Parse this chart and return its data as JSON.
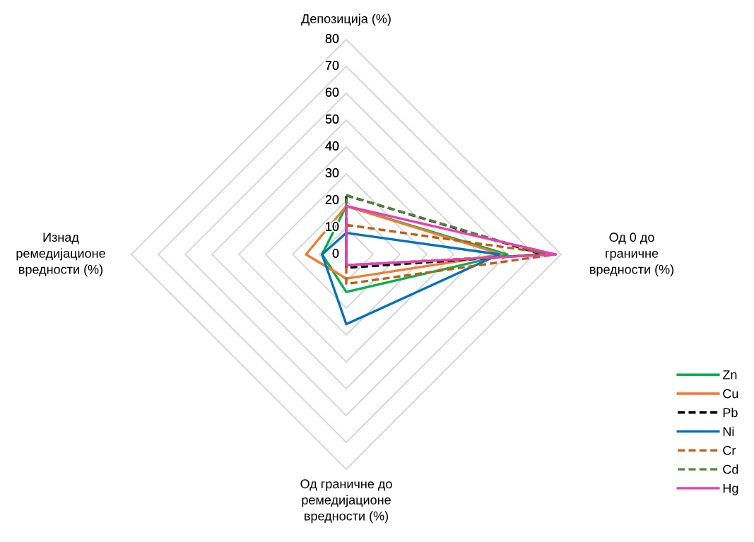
{
  "chart_data": {
    "type": "radar",
    "categories": [
      "Депозиција (%)",
      "Од 0 до\nграничне\nвредности (%)",
      "Од граничне до\nремедијационе\nвредности (%)",
      "Изнад\nремедијационе\nвредности (%)"
    ],
    "ylim": [
      0,
      80
    ],
    "yticks": [
      0,
      10,
      20,
      30,
      40,
      50,
      60,
      70,
      80
    ],
    "grid": true,
    "legend": "bottom right",
    "marker": "none",
    "series": [
      {
        "name": "Zn",
        "color": "#00b050",
        "line_style": "solid",
        "values": [
          18,
          60,
          14,
          9
        ]
      },
      {
        "name": "Cu",
        "color": "#ed7d31",
        "line_style": "solid",
        "values": [
          18,
          58,
          9,
          15
        ]
      },
      {
        "name": "Pb",
        "color": "#000000",
        "line_style": "dashed",
        "values": [
          22,
          73,
          5,
          0
        ]
      },
      {
        "name": "Ni",
        "color": "#0070c0",
        "line_style": "solid",
        "values": [
          8,
          57,
          26,
          9
        ]
      },
      {
        "name": "Cr",
        "color": "#c55a11",
        "line_style": "dashed",
        "values": [
          11,
          78,
          11,
          0
        ]
      },
      {
        "name": "Cd",
        "color": "#548235",
        "line_style": "dashed",
        "values": [
          22,
          74,
          4,
          0
        ]
      },
      {
        "name": "Hg",
        "color": "#e83fb4",
        "line_style": "solid",
        "values": [
          18,
          78,
          4,
          0
        ]
      }
    ]
  }
}
